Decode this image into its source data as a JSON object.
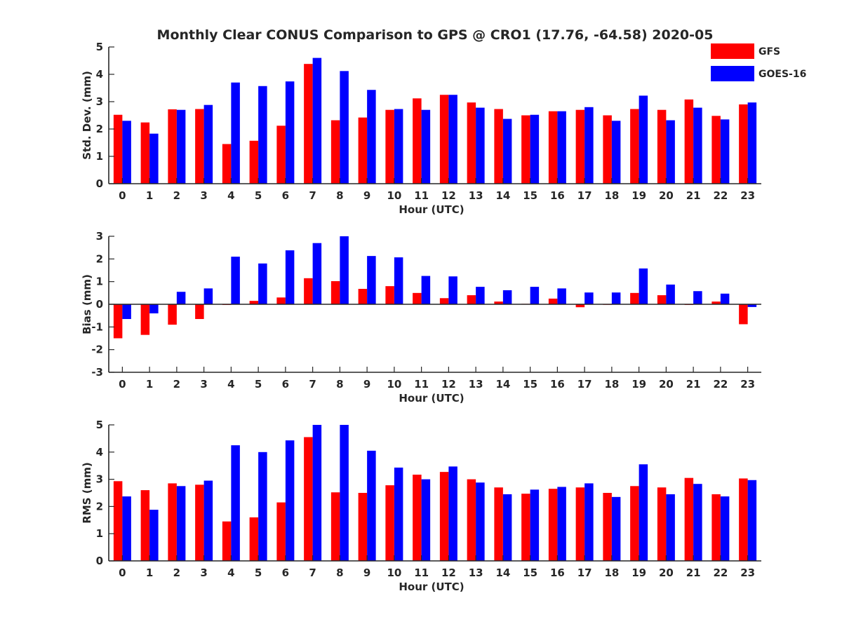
{
  "chart_data": {
    "type": "bar",
    "title": "Monthly Clear CONUS Comparison to GPS @ CRO1 (17.76, -64.58) 2020-05",
    "legend": {
      "placement": "top-right",
      "entries": [
        {
          "name": "GFS",
          "color": "#ff0000"
        },
        {
          "name": "GOES-16",
          "color": "#0000ff"
        }
      ]
    },
    "categories": [
      "0",
      "1",
      "2",
      "3",
      "4",
      "5",
      "6",
      "7",
      "8",
      "9",
      "10",
      "11",
      "12",
      "13",
      "14",
      "15",
      "16",
      "17",
      "18",
      "19",
      "20",
      "21",
      "22",
      "23"
    ],
    "panels": [
      {
        "ylabel": "Std. Dev. (mm)",
        "xlabel": "Hour (UTC)",
        "ylim": [
          0,
          5
        ],
        "yticks": [
          "0",
          "1",
          "2",
          "3",
          "4",
          "5"
        ],
        "series": [
          {
            "name": "GFS",
            "color": "#ff0000",
            "values": [
              2.52,
              2.24,
              2.72,
              2.73,
              1.45,
              1.57,
              2.12,
              4.38,
              2.32,
              2.42,
              2.7,
              3.12,
              3.25,
              2.97,
              2.73,
              2.5,
              2.65,
              2.7,
              2.5,
              2.73,
              2.7,
              3.08,
              2.48,
              2.9
            ]
          },
          {
            "name": "GOES-16",
            "color": "#0000ff",
            "values": [
              2.3,
              1.83,
              2.7,
              2.88,
              3.7,
              3.57,
              3.74,
              4.6,
              4.12,
              3.43,
              2.73,
              2.7,
              3.25,
              2.78,
              2.37,
              2.52,
              2.65,
              2.8,
              2.3,
              3.22,
              2.32,
              2.78,
              2.35,
              2.97
            ]
          }
        ]
      },
      {
        "ylabel": "Bias (mm)",
        "xlabel": "Hour (UTC)",
        "ylim": [
          -3,
          3
        ],
        "yticks": [
          "-3",
          "-2",
          "-1",
          "0",
          "1",
          "2",
          "3"
        ],
        "series": [
          {
            "name": "GFS",
            "color": "#ff0000",
            "values": [
              -1.5,
              -1.35,
              -0.9,
              -0.65,
              -0.03,
              0.15,
              0.3,
              1.15,
              1.02,
              0.68,
              0.8,
              0.5,
              0.27,
              0.4,
              0.12,
              0.02,
              0.25,
              -0.13,
              0.0,
              0.5,
              0.4,
              -0.03,
              0.12,
              -0.88
            ]
          },
          {
            "name": "GOES-16",
            "color": "#0000ff",
            "values": [
              -0.65,
              -0.4,
              0.55,
              0.7,
              2.1,
              1.8,
              2.38,
              2.7,
              3.0,
              2.13,
              2.07,
              1.25,
              1.23,
              0.77,
              0.62,
              0.77,
              0.7,
              0.52,
              0.52,
              1.58,
              0.87,
              0.58,
              0.47,
              -0.12
            ]
          }
        ]
      },
      {
        "ylabel": "RMS (mm)",
        "xlabel": "Hour (UTC)",
        "ylim": [
          0,
          5
        ],
        "yticks": [
          "0",
          "1",
          "2",
          "3",
          "4",
          "5"
        ],
        "series": [
          {
            "name": "GFS",
            "color": "#ff0000",
            "values": [
              2.93,
              2.6,
              2.85,
              2.8,
              1.45,
              1.6,
              2.15,
              4.55,
              2.52,
              2.5,
              2.78,
              3.17,
              3.27,
              3.0,
              2.7,
              2.47,
              2.65,
              2.7,
              2.5,
              2.75,
              2.7,
              3.05,
              2.45,
              3.03
            ]
          },
          {
            "name": "GOES-16",
            "color": "#0000ff",
            "values": [
              2.37,
              1.88,
              2.75,
              2.95,
              4.25,
              4.0,
              4.43,
              5.0,
              5.0,
              4.05,
              3.43,
              3.0,
              3.47,
              2.88,
              2.45,
              2.62,
              2.72,
              2.85,
              2.35,
              3.55,
              2.45,
              2.83,
              2.37,
              2.97
            ]
          }
        ]
      }
    ]
  }
}
